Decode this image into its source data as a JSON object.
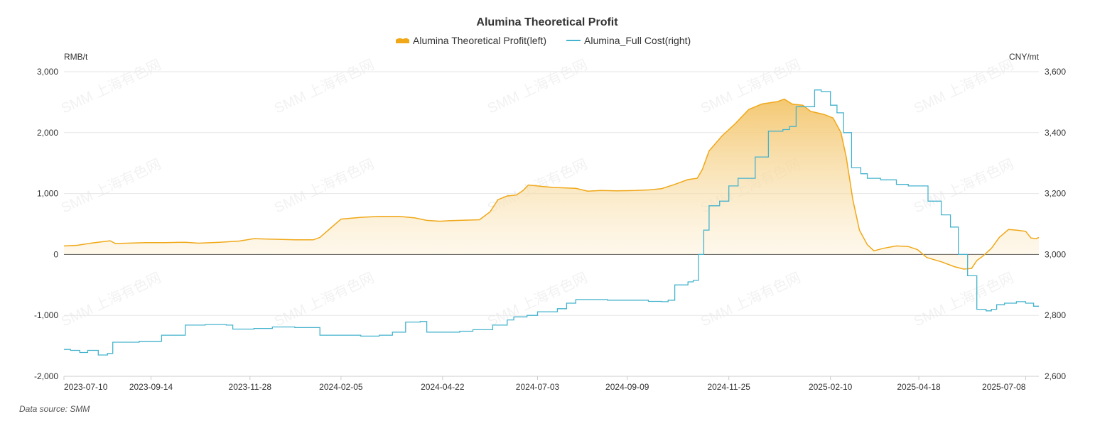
{
  "chart_data": {
    "type": "line",
    "title": "Alumina Theoretical Profit",
    "legend_position": "top-center",
    "grid": true,
    "y_left": {
      "unit": "RMB/t",
      "lim": [
        -2000,
        3000
      ],
      "ticks": [
        "3,000",
        "2,000",
        "1,000",
        "0",
        "-1,000",
        "-2,000"
      ]
    },
    "y_right": {
      "unit": "CNY/mt",
      "lim": [
        2600,
        3600
      ],
      "ticks": [
        "3,600",
        "3,400",
        "3,200",
        "3,000",
        "2,800",
        "2,600"
      ]
    },
    "x_range": [
      "2023-07-10",
      "2025-07-18"
    ],
    "x_tick_labels": [
      "2023-07-10",
      "2023-09-14",
      "2023-11-28",
      "2024-02-05",
      "2024-04-22",
      "2024-07-03",
      "2024-09-09",
      "2024-11-25",
      "2025-02-10",
      "2025-04-18",
      "2025-07-08"
    ],
    "series": [
      {
        "name": "Alumina Theoretical Profit(left)",
        "axis": "left",
        "style": "area",
        "color": "#f0a818",
        "points": [
          [
            "2023-07-10",
            140
          ],
          [
            "2023-07-20",
            150
          ],
          [
            "2023-08-01",
            190
          ],
          [
            "2023-08-14",
            225
          ],
          [
            "2023-08-18",
            180
          ],
          [
            "2023-09-10",
            195
          ],
          [
            "2023-09-25",
            195
          ],
          [
            "2023-10-10",
            200
          ],
          [
            "2023-10-20",
            185
          ],
          [
            "2023-11-05",
            200
          ],
          [
            "2023-11-20",
            220
          ],
          [
            "2023-12-01",
            260
          ],
          [
            "2023-12-15",
            250
          ],
          [
            "2024-01-01",
            240
          ],
          [
            "2024-01-15",
            240
          ],
          [
            "2024-01-20",
            280
          ],
          [
            "2024-01-28",
            430
          ],
          [
            "2024-02-05",
            580
          ],
          [
            "2024-02-20",
            610
          ],
          [
            "2024-03-05",
            625
          ],
          [
            "2024-03-20",
            625
          ],
          [
            "2024-04-01",
            600
          ],
          [
            "2024-04-10",
            560
          ],
          [
            "2024-04-20",
            545
          ],
          [
            "2024-04-28",
            555
          ],
          [
            "2024-05-20",
            570
          ],
          [
            "2024-05-28",
            700
          ],
          [
            "2024-06-03",
            900
          ],
          [
            "2024-06-10",
            960
          ],
          [
            "2024-06-17",
            975
          ],
          [
            "2024-06-22",
            1050
          ],
          [
            "2024-06-26",
            1140
          ],
          [
            "2024-07-05",
            1120
          ],
          [
            "2024-07-15",
            1100
          ],
          [
            "2024-08-01",
            1085
          ],
          [
            "2024-08-10",
            1040
          ],
          [
            "2024-08-20",
            1050
          ],
          [
            "2024-09-01",
            1045
          ],
          [
            "2024-09-15",
            1050
          ],
          [
            "2024-09-25",
            1060
          ],
          [
            "2024-10-05",
            1080
          ],
          [
            "2024-10-15",
            1150
          ],
          [
            "2024-10-25",
            1230
          ],
          [
            "2024-11-01",
            1250
          ],
          [
            "2024-11-05",
            1400
          ],
          [
            "2024-11-10",
            1700
          ],
          [
            "2024-11-20",
            1950
          ],
          [
            "2024-11-30",
            2150
          ],
          [
            "2024-12-10",
            2380
          ],
          [
            "2024-12-20",
            2470
          ],
          [
            "2025-01-01",
            2510
          ],
          [
            "2025-01-06",
            2550
          ],
          [
            "2025-01-12",
            2470
          ],
          [
            "2025-01-20",
            2450
          ],
          [
            "2025-01-26",
            2350
          ],
          [
            "2025-02-05",
            2300
          ],
          [
            "2025-02-12",
            2240
          ],
          [
            "2025-02-18",
            2000
          ],
          [
            "2025-02-22",
            1600
          ],
          [
            "2025-02-27",
            900
          ],
          [
            "2025-03-04",
            400
          ],
          [
            "2025-03-10",
            160
          ],
          [
            "2025-03-15",
            60
          ],
          [
            "2025-03-22",
            100
          ],
          [
            "2025-04-01",
            140
          ],
          [
            "2025-04-10",
            130
          ],
          [
            "2025-04-17",
            80
          ],
          [
            "2025-04-24",
            -50
          ],
          [
            "2025-05-05",
            -120
          ],
          [
            "2025-05-15",
            -200
          ],
          [
            "2025-05-22",
            -240
          ],
          [
            "2025-05-28",
            -230
          ],
          [
            "2025-06-01",
            -100
          ],
          [
            "2025-06-06",
            -20
          ],
          [
            "2025-06-12",
            100
          ],
          [
            "2025-06-18",
            280
          ],
          [
            "2025-06-25",
            410
          ],
          [
            "2025-07-01",
            400
          ],
          [
            "2025-07-08",
            380
          ],
          [
            "2025-07-12",
            270
          ],
          [
            "2025-07-16",
            260
          ],
          [
            "2025-07-18",
            280
          ]
        ]
      },
      {
        "name": "Alumina_Full Cost(right)",
        "axis": "right",
        "style": "line",
        "color": "#45b3cd",
        "points": [
          [
            "2023-07-10",
            2688
          ],
          [
            "2023-07-15",
            2685
          ],
          [
            "2023-07-22",
            2678
          ],
          [
            "2023-07-28",
            2685
          ],
          [
            "2023-08-05",
            2670
          ],
          [
            "2023-08-12",
            2675
          ],
          [
            "2023-08-16",
            2712
          ],
          [
            "2023-08-25",
            2712
          ],
          [
            "2023-09-05",
            2715
          ],
          [
            "2023-09-15",
            2715
          ],
          [
            "2023-09-22",
            2735
          ],
          [
            "2023-10-05",
            2735
          ],
          [
            "2023-10-10",
            2768
          ],
          [
            "2023-10-25",
            2770
          ],
          [
            "2023-11-10",
            2768
          ],
          [
            "2023-11-15",
            2755
          ],
          [
            "2023-12-01",
            2757
          ],
          [
            "2023-12-15",
            2762
          ],
          [
            "2024-01-01",
            2760
          ],
          [
            "2024-01-15",
            2760
          ],
          [
            "2024-01-20",
            2735
          ],
          [
            "2024-02-05",
            2735
          ],
          [
            "2024-02-20",
            2732
          ],
          [
            "2024-03-05",
            2735
          ],
          [
            "2024-03-15",
            2745
          ],
          [
            "2024-03-25",
            2778
          ],
          [
            "2024-04-05",
            2780
          ],
          [
            "2024-04-10",
            2745
          ],
          [
            "2024-04-25",
            2745
          ],
          [
            "2024-05-05",
            2748
          ],
          [
            "2024-05-15",
            2753
          ],
          [
            "2024-05-30",
            2768
          ],
          [
            "2024-06-10",
            2785
          ],
          [
            "2024-06-15",
            2795
          ],
          [
            "2024-06-25",
            2800
          ],
          [
            "2024-07-03",
            2812
          ],
          [
            "2024-07-10",
            2812
          ],
          [
            "2024-07-18",
            2822
          ],
          [
            "2024-07-25",
            2840
          ],
          [
            "2024-08-01",
            2852
          ],
          [
            "2024-08-15",
            2852
          ],
          [
            "2024-08-25",
            2850
          ],
          [
            "2024-09-05",
            2850
          ],
          [
            "2024-09-15",
            2850
          ],
          [
            "2024-09-25",
            2846
          ],
          [
            "2024-10-05",
            2845
          ],
          [
            "2024-10-10",
            2850
          ],
          [
            "2024-10-15",
            2900
          ],
          [
            "2024-10-25",
            2910
          ],
          [
            "2024-10-29",
            2915
          ],
          [
            "2024-11-02",
            3000
          ],
          [
            "2024-11-06",
            3080
          ],
          [
            "2024-11-10",
            3160
          ],
          [
            "2024-11-18",
            3175
          ],
          [
            "2024-11-25",
            3225
          ],
          [
            "2024-12-02",
            3250
          ],
          [
            "2024-12-10",
            3250
          ],
          [
            "2024-12-15",
            3320
          ],
          [
            "2024-12-25",
            3405
          ],
          [
            "2025-01-05",
            3410
          ],
          [
            "2025-01-10",
            3420
          ],
          [
            "2025-01-15",
            3485
          ],
          [
            "2025-01-25",
            3485
          ],
          [
            "2025-01-29",
            3540
          ],
          [
            "2025-02-03",
            3535
          ],
          [
            "2025-02-10",
            3490
          ],
          [
            "2025-02-15",
            3465
          ],
          [
            "2025-02-20",
            3400
          ],
          [
            "2025-02-26",
            3285
          ],
          [
            "2025-03-05",
            3265
          ],
          [
            "2025-03-10",
            3250
          ],
          [
            "2025-03-20",
            3245
          ],
          [
            "2025-04-01",
            3230
          ],
          [
            "2025-04-10",
            3225
          ],
          [
            "2025-04-17",
            3225
          ],
          [
            "2025-04-25",
            3175
          ],
          [
            "2025-05-05",
            3130
          ],
          [
            "2025-05-12",
            3090
          ],
          [
            "2025-05-18",
            3000
          ],
          [
            "2025-05-25",
            2930
          ],
          [
            "2025-06-01",
            2820
          ],
          [
            "2025-06-08",
            2815
          ],
          [
            "2025-06-12",
            2820
          ],
          [
            "2025-06-16",
            2835
          ],
          [
            "2025-06-22",
            2840
          ],
          [
            "2025-07-01",
            2845
          ],
          [
            "2025-07-08",
            2840
          ],
          [
            "2025-07-14",
            2830
          ],
          [
            "2025-07-18",
            2830
          ]
        ]
      }
    ]
  },
  "watermark_text": "SMM 上海有色网",
  "footer": {
    "source": "Data source:  SMM"
  }
}
